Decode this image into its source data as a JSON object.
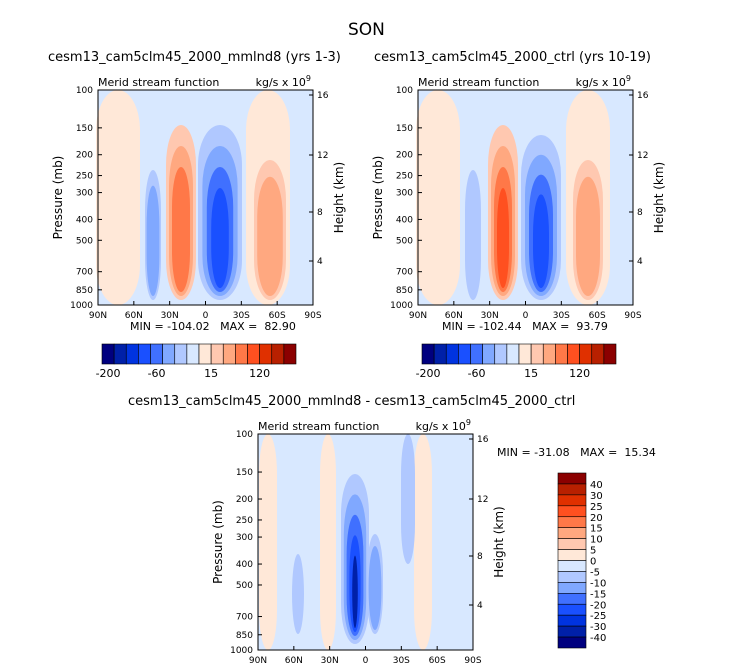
{
  "main_title": "SON",
  "colors": [
    "#00007f",
    "#0020a8",
    "#0033e0",
    "#1a50ff",
    "#4070ff",
    "#80a8ff",
    "#b0c8ff",
    "#d8e8ff",
    "#ffe8d8",
    "#ffc8b0",
    "#ffa880",
    "#ff7848",
    "#ff5020",
    "#e03000",
    "#b82000",
    "#8b0000"
  ],
  "chart_data": [
    {
      "type": "heatmap",
      "title": "cesm13_cam5clm45_2000_mmlnd8 (yrs 1-3)",
      "subtitle_left": "Merid stream function",
      "subtitle_right": "kg/s x 10",
      "subtitle_exp": "9",
      "ylabel": "Pressure (mb)",
      "ylabel_right": "Height (km)",
      "x_ticks": [
        "90N",
        "60N",
        "30N",
        "0",
        "30S",
        "60S",
        "90S"
      ],
      "y_ticks": [
        "100",
        "150",
        "200",
        "250",
        "300",
        "400",
        "500",
        "700",
        "850",
        "1000"
      ],
      "y_right_ticks": [
        "16",
        "12",
        "8",
        "4"
      ],
      "stats": "MIN = -104.02   MAX =  82.90",
      "colorbar_labels": [
        "-200",
        "-60",
        "15",
        "120"
      ]
    },
    {
      "type": "heatmap",
      "title": "cesm13_cam5clm45_2000_ctrl (yrs 10-19)",
      "subtitle_left": "Merid stream function",
      "subtitle_right": "kg/s x 10",
      "subtitle_exp": "9",
      "ylabel": "Pressure (mb)",
      "ylabel_right": "Height (km)",
      "x_ticks": [
        "90N",
        "60N",
        "30N",
        "0",
        "30S",
        "60S",
        "90S"
      ],
      "y_ticks": [
        "100",
        "150",
        "200",
        "250",
        "300",
        "400",
        "500",
        "700",
        "850",
        "1000"
      ],
      "y_right_ticks": [
        "16",
        "12",
        "8",
        "4"
      ],
      "stats": "MIN = -102.44   MAX =  93.79",
      "colorbar_labels": [
        "-200",
        "-60",
        "15",
        "120"
      ]
    },
    {
      "type": "heatmap",
      "title": "cesm13_cam5clm45_2000_mmlnd8 - cesm13_cam5clm45_2000_ctrl",
      "subtitle_left": "Merid stream function",
      "subtitle_right": "kg/s x 10",
      "subtitle_exp": "9",
      "ylabel": "Pressure (mb)",
      "ylabel_right": "Height (km)",
      "x_ticks": [
        "90N",
        "60N",
        "30N",
        "0",
        "30S",
        "60S",
        "90S"
      ],
      "y_ticks": [
        "100",
        "150",
        "200",
        "250",
        "300",
        "400",
        "500",
        "700",
        "850",
        "1000"
      ],
      "y_right_ticks": [
        "16",
        "12",
        "8",
        "4"
      ],
      "stats": "MIN = -31.08   MAX =  15.34",
      "colorbar_labels": [
        "40",
        "30",
        "25",
        "20",
        "15",
        "10",
        "5",
        "0",
        "-5",
        "-10",
        "-15",
        "-20",
        "-25",
        "-30",
        "-40"
      ]
    }
  ]
}
